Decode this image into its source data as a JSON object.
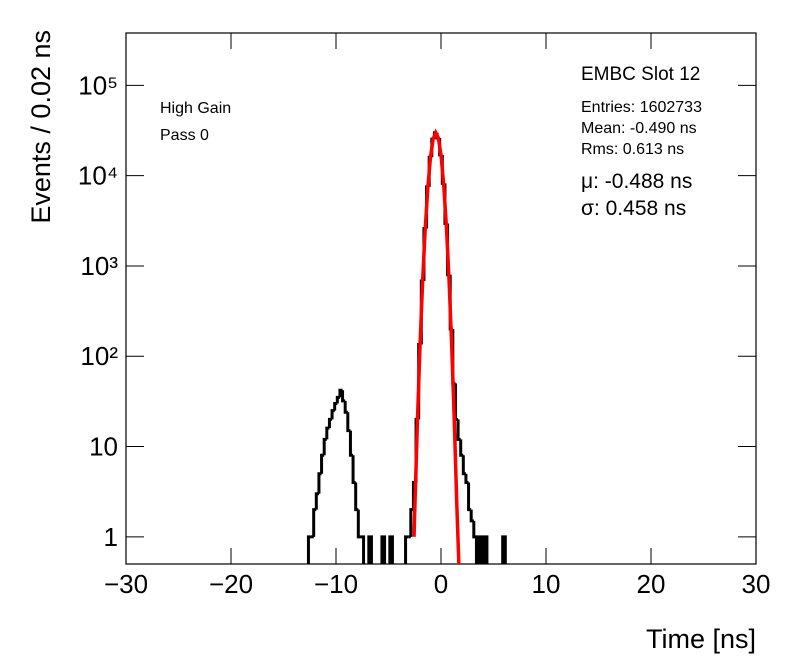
{
  "chart_data": {
    "type": "histogram",
    "title": "EMBC Slot 12",
    "annotations": [
      "High Gain",
      "Pass 0"
    ],
    "stats": [
      "Entries: 1602733",
      "Mean: -0.490 ns",
      "Rms: 0.613 ns"
    ],
    "fit_stats": [
      "μ: -0.488 ns",
      "σ: 0.458 ns"
    ],
    "x_label": "Time [ns]",
    "y_label": "Events / 0.02 ns",
    "xlim": [
      -30,
      30
    ],
    "xticks": [
      {
        "value": -30,
        "label": "−30"
      },
      {
        "value": -20,
        "label": "−20"
      },
      {
        "value": -10,
        "label": "−10"
      },
      0,
      10,
      20,
      30
    ],
    "ylim": [
      0.5,
      380000
    ],
    "log_y": true,
    "yticks": [
      1,
      10,
      {
        "value": 100,
        "label": "10²"
      },
      {
        "value": 1000,
        "label": "10³"
      },
      {
        "value": 10000,
        "label": "10⁴"
      },
      {
        "value": 100000,
        "label": "10⁵"
      }
    ],
    "series": [
      {
        "color": "#000000",
        "style": "step",
        "x": [
          -12.5,
          -12.25,
          -12,
          -11.75,
          -11.5,
          -11.25,
          -11,
          -10.75,
          -10.5,
          -10.25,
          -10,
          -9.75,
          -9.5,
          -9.25,
          -9,
          -8.75,
          -8.5,
          -8.25,
          -8,
          -7.75,
          -7.5,
          -7.25,
          -7,
          -6.75,
          -6.5,
          -6.25,
          -6,
          -5.75,
          -5.5,
          -5.25,
          -5,
          -4.75,
          -4.5,
          -4.25,
          -4,
          -3.75,
          -3.5,
          -3.25,
          -3,
          -2.75,
          -2.5,
          -2.25,
          -2,
          -1.75,
          -1.5,
          -1.25,
          -1,
          -0.75,
          -0.5,
          -0.25,
          0,
          0.25,
          0.5,
          0.75,
          1,
          1.25,
          1.5,
          1.75,
          2,
          2.25,
          2.5,
          2.75,
          3,
          3.25,
          3.5,
          3.75,
          4,
          4.25,
          4.5,
          4.75,
          5,
          5.25,
          5.5,
          5.75,
          6
        ],
        "values": [
          1,
          1,
          2,
          3,
          5,
          8,
          12,
          16,
          20,
          25,
          30,
          35,
          42,
          32,
          24,
          15,
          8,
          4,
          2,
          1,
          1,
          null,
          null,
          1,
          null,
          null,
          null,
          null,
          1,
          null,
          null,
          1,
          null,
          null,
          null,
          null,
          null,
          1,
          1,
          2,
          4,
          20,
          135,
          680,
          2600,
          7500,
          16000,
          25400,
          29900,
          26100,
          17000,
          8200,
          2950,
          800,
          200,
          50,
          20,
          12,
          8,
          5,
          4,
          2,
          1.5,
          1,
          null,
          1,
          null,
          1,
          null,
          null,
          null,
          null,
          null,
          null,
          1
        ]
      },
      {
        "color": "#ff0000",
        "style": "line",
        "x": [
          -2.57,
          -2.5,
          -2.25,
          -2,
          -1.75,
          -1.5,
          -1.25,
          -1,
          -0.75,
          -0.5,
          -0.25,
          0,
          0.25,
          0.5,
          0.75,
          1,
          1.25,
          1.5,
          1.7
        ],
        "values": [
          1,
          1.93,
          18.3,
          129,
          672,
          2604,
          7493,
          16000,
          25380,
          29900,
          26110,
          16950,
          8160,
          2918,
          775,
          152,
          22.3,
          2.4,
          0.5
        ]
      }
    ]
  }
}
